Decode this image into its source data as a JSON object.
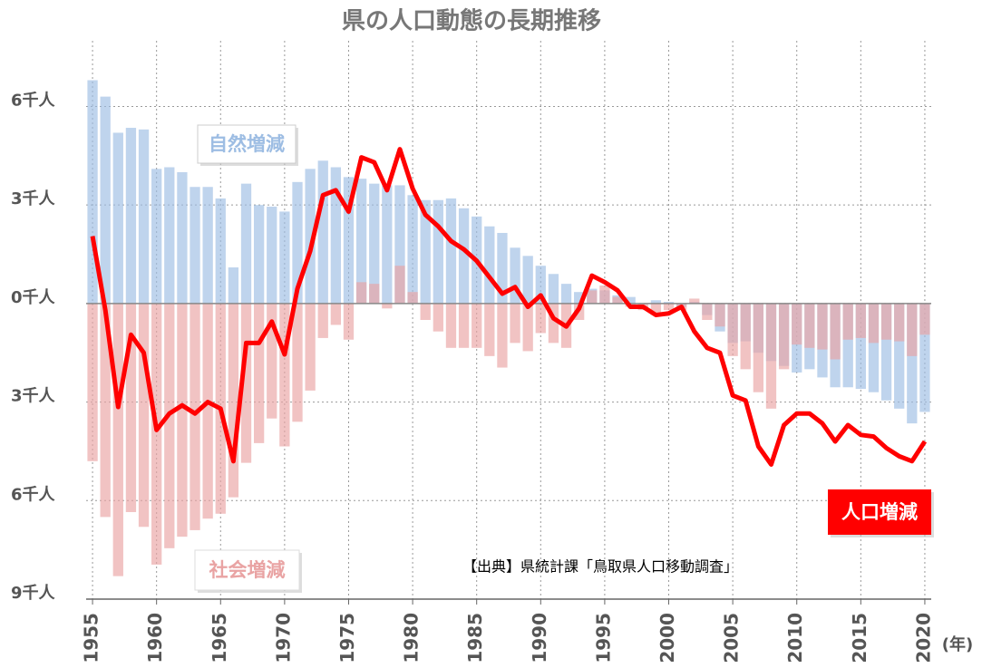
{
  "chart_data": {
    "type": "combo",
    "title": "県の人口動態の長期推移",
    "x_unit": "(年)",
    "source": "【出典】県統計課「鳥取県人口移動調査」",
    "x": [
      1955,
      1956,
      1957,
      1958,
      1959,
      1960,
      1961,
      1962,
      1963,
      1964,
      1965,
      1966,
      1967,
      1968,
      1969,
      1970,
      1971,
      1972,
      1973,
      1974,
      1975,
      1976,
      1977,
      1978,
      1979,
      1980,
      1981,
      1982,
      1983,
      1984,
      1985,
      1986,
      1987,
      1988,
      1989,
      1990,
      1991,
      1992,
      1993,
      1994,
      1995,
      1996,
      1997,
      1998,
      1999,
      2000,
      2001,
      2002,
      2003,
      2004,
      2005,
      2006,
      2007,
      2008,
      2009,
      2010,
      2011,
      2012,
      2013,
      2014,
      2015,
      2016,
      2017,
      2018,
      2019,
      2020
    ],
    "xlim": [
      1954.5,
      2020.5
    ],
    "xticks": [
      1955,
      1960,
      1965,
      1970,
      1975,
      1980,
      1985,
      1990,
      1995,
      2000,
      2005,
      2010,
      2015,
      2020
    ],
    "ylim": [
      -9,
      8
    ],
    "yticks": [
      {
        "value": 6,
        "label": "6千人"
      },
      {
        "value": 3,
        "label": "3千人"
      },
      {
        "value": 0,
        "label": "0千人"
      },
      {
        "value": -3,
        "label": "3千人"
      },
      {
        "value": -6,
        "label": "6千人"
      },
      {
        "value": -9,
        "label": "9千人"
      }
    ],
    "grid": true,
    "series": [
      {
        "name": "自然増減",
        "type": "bar",
        "color": "#9dbde3",
        "values": [
          6.8,
          6.3,
          5.2,
          5.35,
          5.3,
          4.1,
          4.15,
          4.0,
          3.55,
          3.55,
          3.2,
          1.1,
          3.65,
          3.0,
          2.95,
          2.8,
          3.7,
          4.1,
          4.35,
          4.15,
          3.85,
          3.8,
          3.65,
          3.6,
          3.6,
          3.3,
          3.15,
          3.15,
          3.2,
          2.9,
          2.65,
          2.35,
          2.15,
          1.7,
          1.45,
          1.15,
          0.9,
          0.6,
          0.35,
          0.45,
          0.4,
          0.25,
          0.2,
          0.0,
          0.1,
          0.05,
          -0.1,
          0.05,
          -0.35,
          -0.85,
          -1.2,
          -1.15,
          -1.5,
          -1.75,
          -1.9,
          -2.1,
          -2.0,
          -2.25,
          -2.55,
          -2.55,
          -2.6,
          -2.7,
          -2.95,
          -3.2,
          -3.65,
          -3.3
        ]
      },
      {
        "name": "社会増減",
        "type": "bar",
        "color": "#e9a3a3",
        "values": [
          -4.8,
          -6.5,
          -8.3,
          -6.35,
          -6.8,
          -7.95,
          -7.45,
          -7.1,
          -6.9,
          -6.55,
          -6.4,
          -5.9,
          -4.85,
          -4.25,
          -3.5,
          -4.35,
          -3.6,
          -2.65,
          -1.05,
          -0.65,
          -1.1,
          0.65,
          0.6,
          -0.15,
          1.15,
          0.35,
          -0.5,
          -0.85,
          -1.35,
          -1.35,
          -1.35,
          -1.6,
          -1.95,
          -1.2,
          -1.45,
          -0.9,
          -1.2,
          -1.35,
          -0.5,
          0.4,
          0.55,
          0.2,
          -0.1,
          -0.2,
          -0.35,
          -0.2,
          -0.2,
          0.15,
          -0.5,
          -0.7,
          -1.6,
          -2.0,
          -2.7,
          -3.2,
          -2.0,
          -1.25,
          -1.35,
          -1.4,
          -1.7,
          -1.1,
          -1.05,
          -1.2,
          -1.1,
          -1.15,
          -1.6,
          -0.95
        ]
      },
      {
        "name": "人口増減",
        "type": "line",
        "color": "#ff0000",
        "values": [
          2.05,
          -0.2,
          -3.15,
          -0.95,
          -1.5,
          -3.85,
          -3.35,
          -3.1,
          -3.35,
          -3.0,
          -3.2,
          -4.8,
          -1.2,
          -1.2,
          -0.55,
          -1.55,
          0.45,
          1.6,
          3.3,
          3.45,
          2.8,
          4.45,
          4.3,
          3.45,
          4.7,
          3.5,
          2.7,
          2.35,
          1.9,
          1.65,
          1.3,
          0.8,
          0.3,
          0.5,
          -0.1,
          0.25,
          -0.45,
          -0.7,
          -0.15,
          0.85,
          0.65,
          0.4,
          -0.1,
          -0.1,
          -0.35,
          -0.3,
          -0.1,
          -0.85,
          -1.35,
          -1.5,
          -2.8,
          -2.95,
          -4.35,
          -4.9,
          -3.7,
          -3.35,
          -3.35,
          -3.65,
          -4.2,
          -3.7,
          -4.0,
          -4.05,
          -4.4,
          -4.65,
          -4.8,
          -4.2
        ]
      }
    ]
  }
}
